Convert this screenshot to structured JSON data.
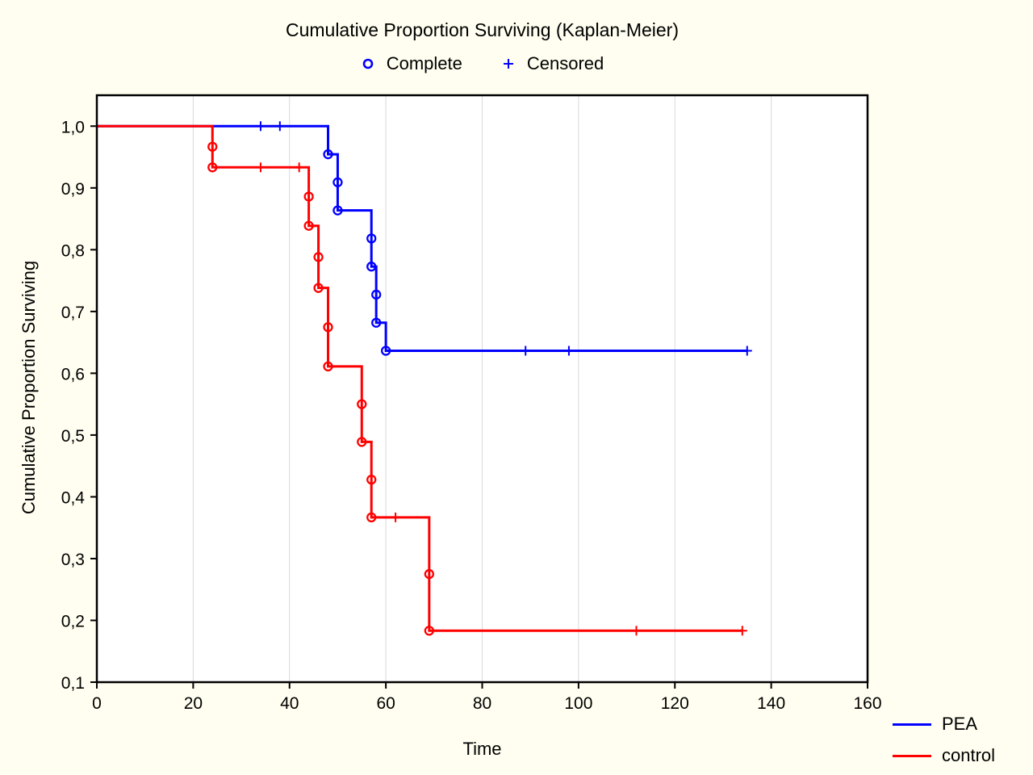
{
  "marker_legend": {
    "complete": "Complete",
    "censored": "Censored"
  },
  "colors": {
    "pea": "#0000FF",
    "control": "#FF0000",
    "background": "#FFFEF0",
    "plot_background": "#FFFFFF",
    "grid": "#D9D9D9",
    "axis": "#000000"
  },
  "chart_data": {
    "type": "line",
    "subtype": "kaplan-meier-step",
    "title": "Cumulative Proportion Surviving (Kaplan-Meier)",
    "xlabel": "Time",
    "ylabel": "Cumulative Proportion Surviving",
    "xlim": [
      0,
      160
    ],
    "ylim": [
      0.1,
      1.05
    ],
    "grid": "vertical-only",
    "legend_position": "bottom-right",
    "x_ticks": [
      0,
      20,
      40,
      60,
      80,
      100,
      120,
      140,
      160
    ],
    "x_tick_labels": [
      "0",
      "20",
      "40",
      "60",
      "80",
      "100",
      "120",
      "140",
      "160"
    ],
    "y_ticks": [
      1.0,
      0.9,
      0.8,
      0.7,
      0.6,
      0.5,
      0.4,
      0.3,
      0.2,
      0.1
    ],
    "y_tick_labels": [
      "1,0",
      "0,9",
      "0,8",
      "0,7",
      "0,6",
      "0,5",
      "0,4",
      "0,3",
      "0,2",
      "0,1"
    ],
    "series": [
      {
        "name": "PEA",
        "color": "#0000FF",
        "step_points": [
          [
            0,
            1.0
          ],
          [
            48,
            1.0
          ],
          [
            48,
            0.9545
          ],
          [
            50,
            0.9545
          ],
          [
            50,
            0.8636
          ],
          [
            57,
            0.8636
          ],
          [
            57,
            0.7727
          ],
          [
            58,
            0.7727
          ],
          [
            58,
            0.6818
          ],
          [
            60,
            0.6818
          ],
          [
            60,
            0.6364
          ],
          [
            135,
            0.6364
          ]
        ],
        "complete_events": [
          [
            48,
            0.9545
          ],
          [
            50,
            0.9091
          ],
          [
            50,
            0.8636
          ],
          [
            57,
            0.8182
          ],
          [
            57,
            0.7727
          ],
          [
            58,
            0.7273
          ],
          [
            58,
            0.6818
          ],
          [
            60,
            0.6364
          ]
        ],
        "censored_events": [
          [
            34,
            1.0
          ],
          [
            38,
            1.0
          ],
          [
            89,
            0.6364
          ],
          [
            98,
            0.6364
          ],
          [
            135,
            0.6364
          ]
        ]
      },
      {
        "name": "control",
        "color": "#FF0000",
        "step_points": [
          [
            0,
            1.0
          ],
          [
            24,
            1.0
          ],
          [
            24,
            0.9333
          ],
          [
            44,
            0.9333
          ],
          [
            44,
            0.8387
          ],
          [
            46,
            0.8387
          ],
          [
            46,
            0.7381
          ],
          [
            48,
            0.7381
          ],
          [
            48,
            0.6111
          ],
          [
            55,
            0.6111
          ],
          [
            55,
            0.4889
          ],
          [
            57,
            0.4889
          ],
          [
            57,
            0.3667
          ],
          [
            69,
            0.3667
          ],
          [
            69,
            0.1833
          ],
          [
            134,
            0.1833
          ]
        ],
        "complete_events": [
          [
            24,
            0.9667
          ],
          [
            24,
            0.9333
          ],
          [
            44,
            0.886
          ],
          [
            44,
            0.8387
          ],
          [
            46,
            0.7881
          ],
          [
            46,
            0.7381
          ],
          [
            48,
            0.6746
          ],
          [
            48,
            0.6111
          ],
          [
            55,
            0.55
          ],
          [
            55,
            0.4889
          ],
          [
            57,
            0.4278
          ],
          [
            57,
            0.3667
          ],
          [
            69,
            0.275
          ],
          [
            69,
            0.1833
          ]
        ],
        "censored_events": [
          [
            34,
            0.9333
          ],
          [
            42,
            0.9333
          ],
          [
            62,
            0.3667
          ],
          [
            112,
            0.1833
          ],
          [
            134,
            0.1833
          ]
        ]
      }
    ]
  }
}
